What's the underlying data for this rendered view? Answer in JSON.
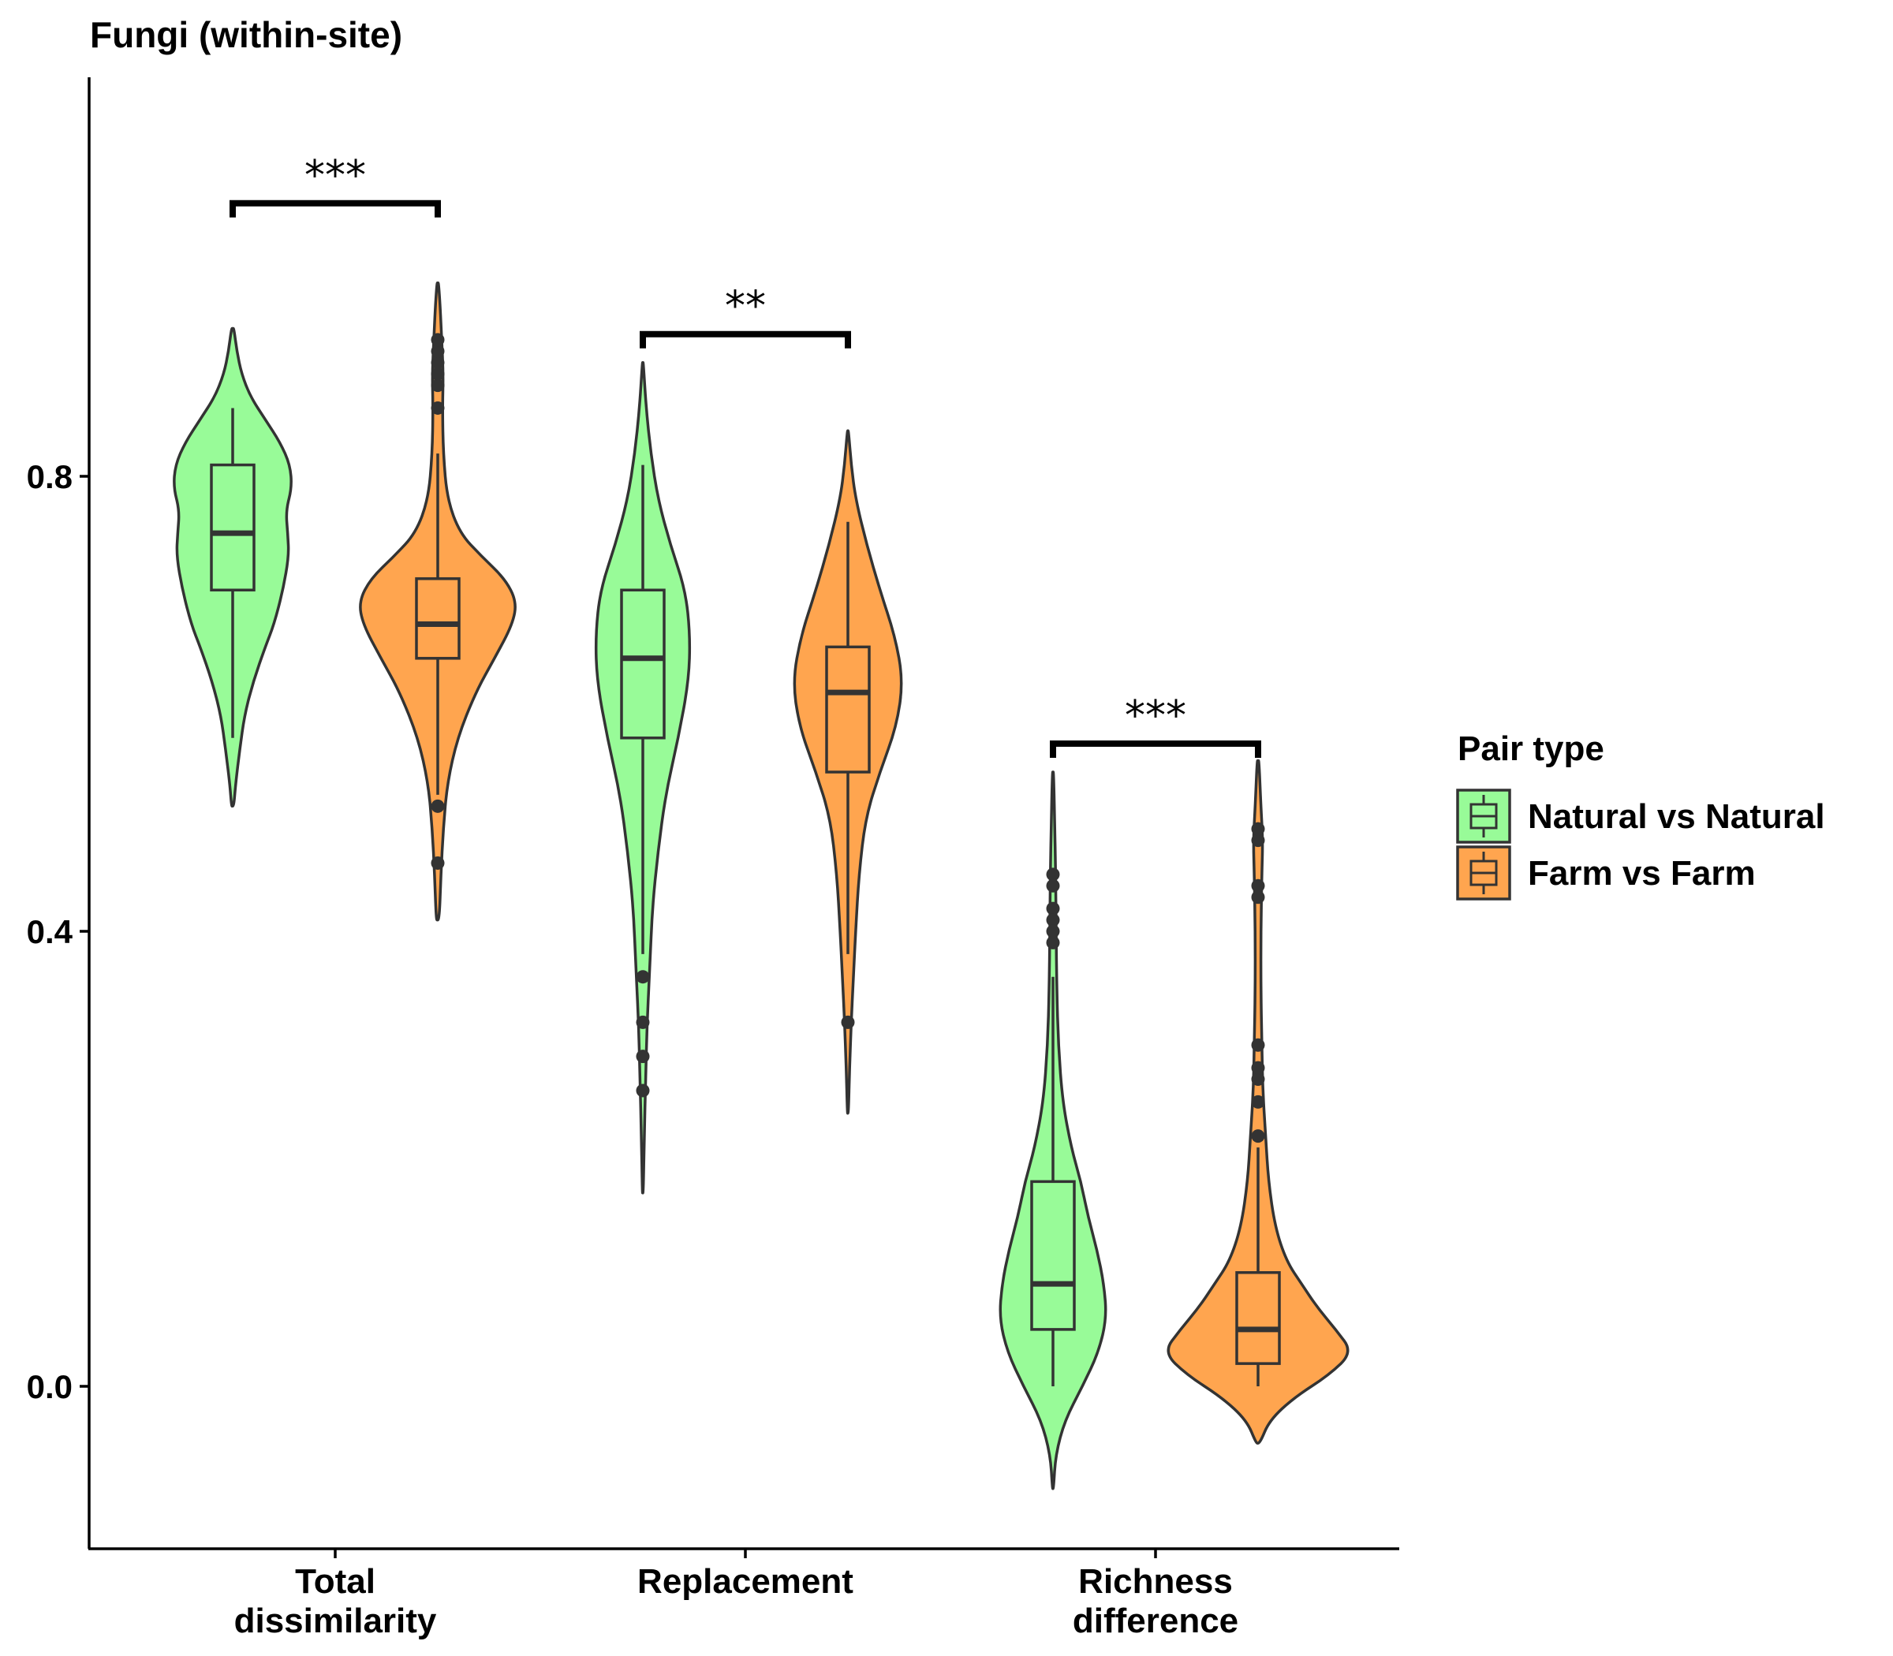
{
  "chart_data": {
    "type": "violin",
    "title": "Fungi (within-site)",
    "xlabel": "",
    "ylabel": "",
    "ylim": [
      -0.14,
      1.15
    ],
    "yticks": [
      0.0,
      0.4,
      0.8
    ],
    "ytick_labels": [
      "0.0",
      "0.4",
      "0.8"
    ],
    "grid": false,
    "legend": {
      "title": "Pair type",
      "placement": "right",
      "entries": [
        "Natural vs Natural",
        "Farm vs Farm"
      ]
    },
    "colors": {
      "Natural vs Natural": "#98FB98",
      "Farm vs Farm": "#FFA54F",
      "outline": "#333333"
    },
    "categories": [
      {
        "label_lines": [
          "Total",
          "dissimilarity"
        ]
      },
      {
        "label_lines": [
          "Replacement"
        ]
      },
      {
        "label_lines": [
          "Richness",
          "difference"
        ]
      }
    ],
    "series": [
      {
        "name": "Natural vs Natural",
        "groups": [
          {
            "box": {
              "q1": 0.7,
              "median": 0.75,
              "q3": 0.81,
              "whisker_low": 0.57,
              "whisker_high": 0.86
            },
            "outliers": [],
            "violin": {
              "min": 0.51,
              "max": 0.93,
              "profile": [
                [
                  0.51,
                  0.02
                ],
                [
                  0.53,
                  0.05
                ],
                [
                  0.56,
                  0.12
                ],
                [
                  0.59,
                  0.2
                ],
                [
                  0.62,
                  0.35
                ],
                [
                  0.65,
                  0.55
                ],
                [
                  0.67,
                  0.7
                ],
                [
                  0.7,
                  0.85
                ],
                [
                  0.73,
                  0.95
                ],
                [
                  0.75,
                  0.93
                ],
                [
                  0.77,
                  0.9
                ],
                [
                  0.79,
                  1.0
                ],
                [
                  0.81,
                  0.97
                ],
                [
                  0.83,
                  0.8
                ],
                [
                  0.85,
                  0.55
                ],
                [
                  0.87,
                  0.3
                ],
                [
                  0.89,
                  0.15
                ],
                [
                  0.91,
                  0.07
                ],
                [
                  0.93,
                  0.02
                ]
              ]
            }
          },
          {
            "box": {
              "q1": 0.57,
              "median": 0.64,
              "q3": 0.7,
              "whisker_low": 0.38,
              "whisker_high": 0.81
            },
            "outliers": [
              0.36,
              0.32,
              0.29,
              0.26
            ],
            "violin": {
              "min": 0.17,
              "max": 0.9,
              "profile": [
                [
                  0.17,
                  0.01
                ],
                [
                  0.22,
                  0.03
                ],
                [
                  0.27,
                  0.06
                ],
                [
                  0.32,
                  0.09
                ],
                [
                  0.37,
                  0.15
                ],
                [
                  0.42,
                  0.2
                ],
                [
                  0.47,
                  0.32
                ],
                [
                  0.52,
                  0.48
                ],
                [
                  0.57,
                  0.75
                ],
                [
                  0.62,
                  0.97
                ],
                [
                  0.66,
                  1.0
                ],
                [
                  0.7,
                  0.9
                ],
                [
                  0.74,
                  0.58
                ],
                [
                  0.78,
                  0.32
                ],
                [
                  0.82,
                  0.17
                ],
                [
                  0.86,
                  0.07
                ],
                [
                  0.9,
                  0.01
                ]
              ]
            }
          },
          {
            "box": {
              "q1": 0.05,
              "median": 0.09,
              "q3": 0.18,
              "whisker_low": 0.0,
              "whisker_high": 0.36
            },
            "outliers": [
              0.45,
              0.44,
              0.42,
              0.41,
              0.4,
              0.39
            ],
            "violin": {
              "min": -0.09,
              "max": 0.54,
              "profile": [
                [
                  -0.09,
                  0.01
                ],
                [
                  -0.06,
                  0.05
                ],
                [
                  -0.03,
                  0.22
                ],
                [
                  0.0,
                  0.55
                ],
                [
                  0.03,
                  0.85
                ],
                [
                  0.06,
                  1.0
                ],
                [
                  0.09,
                  0.95
                ],
                [
                  0.12,
                  0.82
                ],
                [
                  0.15,
                  0.65
                ],
                [
                  0.18,
                  0.52
                ],
                [
                  0.21,
                  0.34
                ],
                [
                  0.25,
                  0.18
                ],
                [
                  0.3,
                  0.1
                ],
                [
                  0.35,
                  0.07
                ],
                [
                  0.4,
                  0.06
                ],
                [
                  0.45,
                  0.05
                ],
                [
                  0.5,
                  0.03
                ],
                [
                  0.54,
                  0.01
                ]
              ]
            }
          }
        ]
      },
      {
        "name": "Farm vs Farm",
        "groups": [
          {
            "box": {
              "q1": 0.64,
              "median": 0.67,
              "q3": 0.71,
              "whisker_low": 0.52,
              "whisker_high": 0.82
            },
            "outliers": [
              0.51,
              0.46,
              0.86,
              0.88,
              0.89,
              0.9,
              0.91,
              0.92
            ],
            "violin": {
              "min": 0.41,
              "max": 0.97,
              "profile": [
                [
                  0.41,
                  0.02
                ],
                [
                  0.45,
                  0.04
                ],
                [
                  0.49,
                  0.07
                ],
                [
                  0.53,
                  0.12
                ],
                [
                  0.57,
                  0.25
                ],
                [
                  0.61,
                  0.48
                ],
                [
                  0.64,
                  0.72
                ],
                [
                  0.67,
                  0.95
                ],
                [
                  0.69,
                  1.0
                ],
                [
                  0.71,
                  0.85
                ],
                [
                  0.73,
                  0.55
                ],
                [
                  0.75,
                  0.28
                ],
                [
                  0.78,
                  0.12
                ],
                [
                  0.82,
                  0.07
                ],
                [
                  0.86,
                  0.06
                ],
                [
                  0.89,
                  0.07
                ],
                [
                  0.92,
                  0.05
                ],
                [
                  0.95,
                  0.03
                ],
                [
                  0.97,
                  0.01
                ]
              ]
            }
          },
          {
            "box": {
              "q1": 0.54,
              "median": 0.61,
              "q3": 0.65,
              "whisker_low": 0.38,
              "whisker_high": 0.76
            },
            "outliers": [
              0.32
            ],
            "violin": {
              "min": 0.24,
              "max": 0.84,
              "profile": [
                [
                  0.24,
                  0.01
                ],
                [
                  0.28,
                  0.03
                ],
                [
                  0.32,
                  0.06
                ],
                [
                  0.36,
                  0.1
                ],
                [
                  0.4,
                  0.14
                ],
                [
                  0.45,
                  0.2
                ],
                [
                  0.5,
                  0.32
                ],
                [
                  0.54,
                  0.58
                ],
                [
                  0.58,
                  0.88
                ],
                [
                  0.62,
                  1.0
                ],
                [
                  0.66,
                  0.85
                ],
                [
                  0.7,
                  0.58
                ],
                [
                  0.74,
                  0.34
                ],
                [
                  0.78,
                  0.14
                ],
                [
                  0.81,
                  0.06
                ],
                [
                  0.84,
                  0.01
                ]
              ]
            }
          },
          {
            "box": {
              "q1": 0.02,
              "median": 0.05,
              "q3": 0.1,
              "whisker_low": 0.0,
              "whisker_high": 0.21
            },
            "outliers": [
              0.22,
              0.25,
              0.27,
              0.28,
              0.3,
              0.43,
              0.44,
              0.48,
              0.49
            ],
            "violin": {
              "min": -0.05,
              "max": 0.55,
              "profile": [
                [
                  -0.05,
                  0.02
                ],
                [
                  -0.03,
                  0.12
                ],
                [
                  -0.01,
                  0.38
                ],
                [
                  0.01,
                  0.75
                ],
                [
                  0.03,
                  1.0
                ],
                [
                  0.05,
                  0.82
                ],
                [
                  0.07,
                  0.62
                ],
                [
                  0.09,
                  0.46
                ],
                [
                  0.11,
                  0.3
                ],
                [
                  0.14,
                  0.18
                ],
                [
                  0.18,
                  0.11
                ],
                [
                  0.22,
                  0.08
                ],
                [
                  0.26,
                  0.05
                ],
                [
                  0.3,
                  0.04
                ],
                [
                  0.35,
                  0.03
                ],
                [
                  0.4,
                  0.03
                ],
                [
                  0.45,
                  0.04
                ],
                [
                  0.48,
                  0.05
                ],
                [
                  0.51,
                  0.03
                ],
                [
                  0.55,
                  0.01
                ]
              ]
            }
          }
        ]
      }
    ],
    "significance": [
      {
        "group": 0,
        "label": "***",
        "y": 1.04
      },
      {
        "group": 1,
        "label": "**",
        "y": 0.925
      },
      {
        "group": 2,
        "label": "***",
        "y": 0.565
      }
    ]
  }
}
